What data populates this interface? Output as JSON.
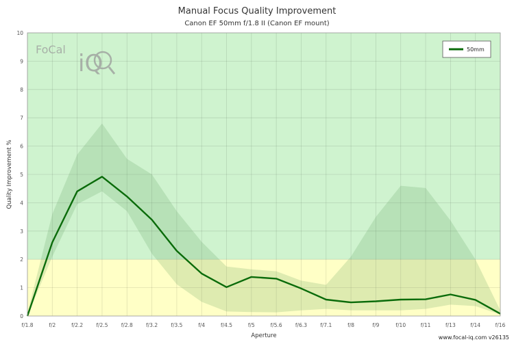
{
  "chart_data": {
    "type": "line",
    "title": "Manual Focus Quality Improvement",
    "subtitle": "Canon EF 50mm f/1.8 II (Canon EF mount)",
    "xlabel": "Aperture",
    "ylabel": "Quality Improvement %",
    "ylim": [
      0,
      10
    ],
    "yticks": [
      "0",
      "1",
      "2",
      "3",
      "4",
      "5",
      "6",
      "7",
      "8",
      "9",
      "10"
    ],
    "categories": [
      "f/1.8",
      "f/2",
      "f/2.2",
      "f/2.5",
      "f/2.8",
      "f/3.2",
      "f/3.5",
      "f/4",
      "f/4.5",
      "f/5",
      "f/5.6",
      "f/6.3",
      "f/7.1",
      "f/8",
      "f/9",
      "f/10",
      "f/11",
      "f/13",
      "f/14",
      "f/16"
    ],
    "series": [
      {
        "name": "50mm",
        "color": "#0a6b0a",
        "values": [
          0.0,
          2.6,
          4.4,
          4.92,
          4.22,
          3.4,
          2.3,
          1.5,
          1.02,
          1.38,
          1.32,
          0.97,
          0.58,
          0.48,
          0.52,
          0.58,
          0.59,
          0.76,
          0.57,
          0.08
        ],
        "band_upper": [
          0.1,
          3.6,
          5.7,
          6.8,
          5.55,
          5.0,
          3.7,
          2.62,
          1.75,
          1.65,
          1.58,
          1.25,
          1.1,
          2.1,
          3.5,
          4.6,
          4.52,
          3.37,
          2.0,
          0.2
        ],
        "band_lower": [
          0.0,
          2.1,
          3.95,
          4.4,
          3.7,
          2.2,
          1.12,
          0.5,
          0.16,
          0.14,
          0.13,
          0.2,
          0.25,
          0.2,
          0.2,
          0.2,
          0.25,
          0.4,
          0.35,
          0.05
        ]
      }
    ],
    "zones": [
      {
        "from": 0,
        "to": 2,
        "color": "#ffffc6"
      },
      {
        "from": 2,
        "to": 10,
        "color": "#cff3cf"
      }
    ],
    "grid": true,
    "legend": "top-right"
  },
  "watermark": {
    "brand": "FoCal",
    "mark": "iQ"
  },
  "footer": "www.focal-iq.com  v26135"
}
